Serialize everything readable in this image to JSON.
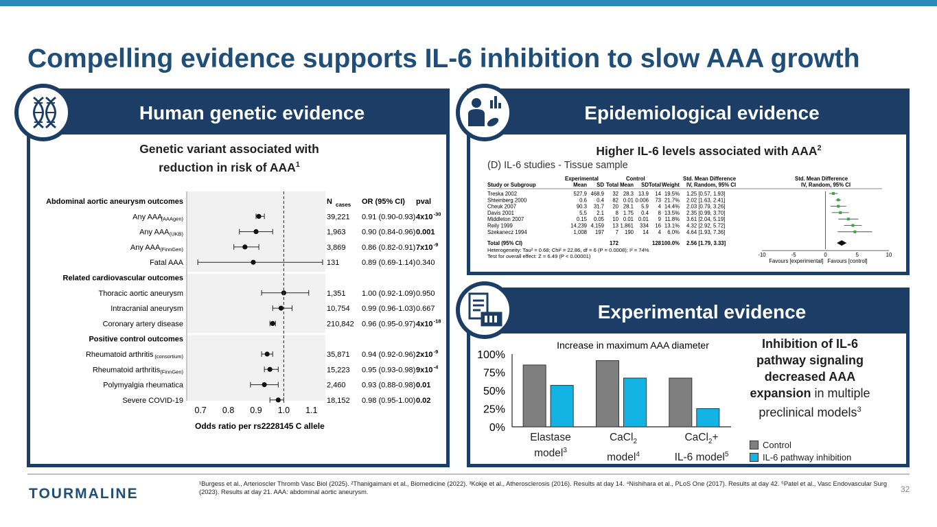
{
  "slide": {
    "title": "Compelling evidence supports IL-6 inhibition to slow AAA growth",
    "page_number": "32",
    "logo_text": "TOURMALINE",
    "references": "¹Burgess et al., Arterioscler Thromb Vasc Biol (2025). ²Thanigaimani et al., Biomedicine (2022). ³Kokje et al., Atherosclerosis (2016). Results at day 14. ⁴Nishihara et al., PLoS One (2017). Results at day 42. ⁵Patel et al., Vasc Endovascular Surg (2023). Results at day 21. AAA: abdominal aortic aneurysm."
  },
  "panels": {
    "genetic": {
      "header": "Human genetic evidence",
      "icon": "dna-icon",
      "subtitle_line1": "Genetic variant associated with",
      "subtitle_line2": "reduction in risk of AAA",
      "subtitle_sup": "1"
    },
    "epi": {
      "header": "Epidemiological evidence",
      "icon": "scientist-chart-icon",
      "subtitle": "Higher IL-6 levels associated with AAA",
      "subtitle_sup": "2"
    },
    "exp": {
      "header": "Experimental evidence",
      "icon": "lab-report-icon",
      "side_bold1": "Inhibition of IL-6 pathway signaling decreased AAA expansion",
      "side_rest": " in multiple preclinical models",
      "side_sup": "3"
    }
  },
  "chart_data": [
    {
      "type": "scatter",
      "title": "Abdominal aortic aneurysm outcomes",
      "xlabel": "Odds ratio per rs2228145 C allele",
      "xlim": [
        0.65,
        1.15
      ],
      "xticks": [
        "0.7",
        "0.8",
        "0.9",
        "1.0",
        "1.1"
      ],
      "reference_line": 1.0,
      "columns": {
        "n": "N",
        "n_sub": "cases",
        "or": "OR (95% CI)",
        "p": "pval"
      },
      "groups": [
        {
          "name": "Abdominal aortic aneurysm outcomes",
          "rows": [
            {
              "label": "Any AAA",
              "sub": "(AAAgen)",
              "n": "39,221",
              "or": 0.91,
              "lo": 0.9,
              "hi": 0.93,
              "ci": "0.91 (0.90-0.93)",
              "p": "4x10",
              "pexp": "-30",
              "bold": true
            },
            {
              "label": "Any AAA",
              "sub": "(UKB)",
              "n": "1,963",
              "or": 0.9,
              "lo": 0.84,
              "hi": 0.96,
              "ci": "0.90 (0.84-0.96)",
              "p": "0.001",
              "pexp": "",
              "bold": true
            },
            {
              "label": "Any AAA",
              "sub": "(FinnGen)",
              "n": "3,869",
              "or": 0.86,
              "lo": 0.82,
              "hi": 0.91,
              "ci": "0.86 (0.82-0.91)",
              "p": "7x10",
              "pexp": "-9",
              "bold": true
            },
            {
              "label": "Fatal AAA",
              "sub": "",
              "n": "131",
              "or": 0.89,
              "lo": 0.69,
              "hi": 1.14,
              "ci": "0.89 (0.69-1.14)",
              "p": "0.340",
              "pexp": "",
              "bold": false
            }
          ]
        },
        {
          "name": "Related cardiovascular outcomes",
          "rows": [
            {
              "label": "Thoracic aortic aneurysm",
              "sub": "",
              "n": "1,351",
              "or": 1.0,
              "lo": 0.92,
              "hi": 1.09,
              "ci": "1.00 (0.92-1.09)",
              "p": "0.950",
              "pexp": "",
              "bold": false
            },
            {
              "label": "Intracranial aneurysm",
              "sub": "",
              "n": "10,754",
              "or": 0.99,
              "lo": 0.96,
              "hi": 1.03,
              "ci": "0.99 (0.96-1.03)",
              "p": "0.667",
              "pexp": "",
              "bold": false
            },
            {
              "label": "Coronary artery disease",
              "sub": "",
              "n": "210,842",
              "or": 0.96,
              "lo": 0.95,
              "hi": 0.97,
              "ci": "0.96 (0.95-0.97)",
              "p": "4x10",
              "pexp": "-18",
              "bold": true
            }
          ]
        },
        {
          "name": "Positive control outcomes",
          "rows": [
            {
              "label": "Rheumatoid arthritis",
              "sub": "(consortium)",
              "n": "35,871",
              "or": 0.94,
              "lo": 0.92,
              "hi": 0.96,
              "ci": "0.94 (0.92-0.96)",
              "p": "2x10",
              "pexp": "-9",
              "bold": true
            },
            {
              "label": "Rheumatoid arthritis",
              "sub": "(FinnGen)",
              "n": "15,223",
              "or": 0.95,
              "lo": 0.93,
              "hi": 0.98,
              "ci": "0.95 (0.93-0.98)",
              "p": "9x10",
              "pexp": "-4",
              "bold": true
            },
            {
              "label": "Polymyalgia rheumatica",
              "sub": "",
              "n": "2,460",
              "or": 0.93,
              "lo": 0.88,
              "hi": 0.98,
              "ci": "0.93 (0.88-0.98)",
              "p": "0.01",
              "pexp": "",
              "bold": true
            },
            {
              "label": "Severe COVID-19",
              "sub": "",
              "n": "18,152",
              "or": 0.98,
              "lo": 0.95,
              "hi": 1.0,
              "ci": "0.98 (0.95-1.00)",
              "p": "0.02",
              "pexp": "",
              "bold": true
            }
          ]
        }
      ]
    },
    {
      "type": "table",
      "title": "(D) IL-6 studies - Tissue sample",
      "headers": {
        "exp": "Experimental",
        "ctrl": "Control",
        "smd": "Std. Mean Difference",
        "smd2": "Std. Mean Difference",
        "cols": [
          "Study or Subgroup",
          "Mean",
          "SD",
          "Total",
          "Mean",
          "SD",
          "Total",
          "Weight",
          "IV, Random, 95% CI",
          "IV, Random, 95% CI"
        ]
      },
      "rows": [
        {
          "study": "Treska 2002",
          "m1": "527.9",
          "sd1": "468.9",
          "n1": "32",
          "m2": "28.3",
          "sd2": "13.9",
          "n2": "14",
          "w": "19.5%",
          "ci": "1.25 [0.57, 1.93]",
          "est": 1.25,
          "lo": 0.57,
          "hi": 1.93
        },
        {
          "study": "Shteinberg 2000",
          "m1": "0.6",
          "sd1": "0.4",
          "n1": "82",
          "m2": "0.01",
          "sd2": "0.006",
          "n2": "73",
          "w": "21.7%",
          "ci": "2.02 [1.63, 2.41]",
          "est": 2.02,
          "lo": 1.63,
          "hi": 2.41
        },
        {
          "study": "Cheuk 2007",
          "m1": "90.3",
          "sd1": "31.7",
          "n1": "20",
          "m2": "28.1",
          "sd2": "5.9",
          "n2": "4",
          "w": "14.4%",
          "ci": "2.03 [0.79, 3.26]",
          "est": 2.03,
          "lo": 0.79,
          "hi": 3.26
        },
        {
          "study": "Davis 2001",
          "m1": "5.5",
          "sd1": "2.1",
          "n1": "8",
          "m2": "1.75",
          "sd2": "0.4",
          "n2": "8",
          "w": "13.5%",
          "ci": "2.35 [0.99, 3.70]",
          "est": 2.35,
          "lo": 0.99,
          "hi": 3.7
        },
        {
          "study": "Middleton 2007",
          "m1": "0.15",
          "sd1": "0.05",
          "n1": "10",
          "m2": "0.01",
          "sd2": "0.01",
          "n2": "9",
          "w": "11.8%",
          "ci": "3.61 [2.04, 5.19]",
          "est": 3.61,
          "lo": 2.04,
          "hi": 5.19
        },
        {
          "study": "Reily 1999",
          "m1": "14,239",
          "sd1": "4,159",
          "n1": "13",
          "m2": "1,861",
          "sd2": "334",
          "n2": "16",
          "w": "13.1%",
          "ci": "4.32 [2.92, 5.72]",
          "est": 4.32,
          "lo": 2.92,
          "hi": 5.72
        },
        {
          "study": "Szekanecz 1994",
          "m1": "1,008",
          "sd1": "197",
          "n1": "7",
          "m2": "190",
          "sd2": "14",
          "n2": "4",
          "w": "6.0%",
          "ci": "4.64 [1.93, 7.36]",
          "est": 4.64,
          "lo": 1.93,
          "hi": 7.36
        }
      ],
      "total": {
        "study": "Total (95% CI)",
        "n1": "172",
        "n2": "128",
        "w": "100.0%",
        "ci": "2.56 [1.79, 3.33]",
        "est": 2.56,
        "lo": 1.79,
        "hi": 3.33
      },
      "heterogeneity": "Heterogeneity: Tau² = 0.68; Chi² = 22.86, df = 6 (P = 0.0008); I² = 74%",
      "overall": "Test for overall effect: Z = 6.49 (P < 0.00001)",
      "xlim": [
        -10,
        10
      ],
      "xticks": [
        "-10",
        "-5",
        "0",
        "5",
        "10"
      ],
      "favours_left": "Favours [experimental]",
      "favours_right": "Favours [control]"
    },
    {
      "type": "bar",
      "title": "Increase in maximum AAA diameter",
      "categories": [
        {
          "line1": "Elastase",
          "line2": "model",
          "sup": "3"
        },
        {
          "line1": "CaCl",
          "line1_sub": "2",
          "line2": "model",
          "sup": "4"
        },
        {
          "line1": "CaCl",
          "line1_sub": "2",
          "line1_post": "+",
          "line2": "IL-6 model",
          "sup": "5"
        }
      ],
      "series": [
        {
          "name": "Control",
          "color": "#7f7f7f",
          "values": [
            85,
            91,
            67
          ]
        },
        {
          "name": "IL-6 pathway inhibition",
          "color": "#13b4e3",
          "values": [
            57,
            67,
            25
          ]
        }
      ],
      "ylim": [
        0,
        100
      ],
      "yticks": [
        "0%",
        "25%",
        "50%",
        "75%",
        "100%"
      ]
    }
  ]
}
